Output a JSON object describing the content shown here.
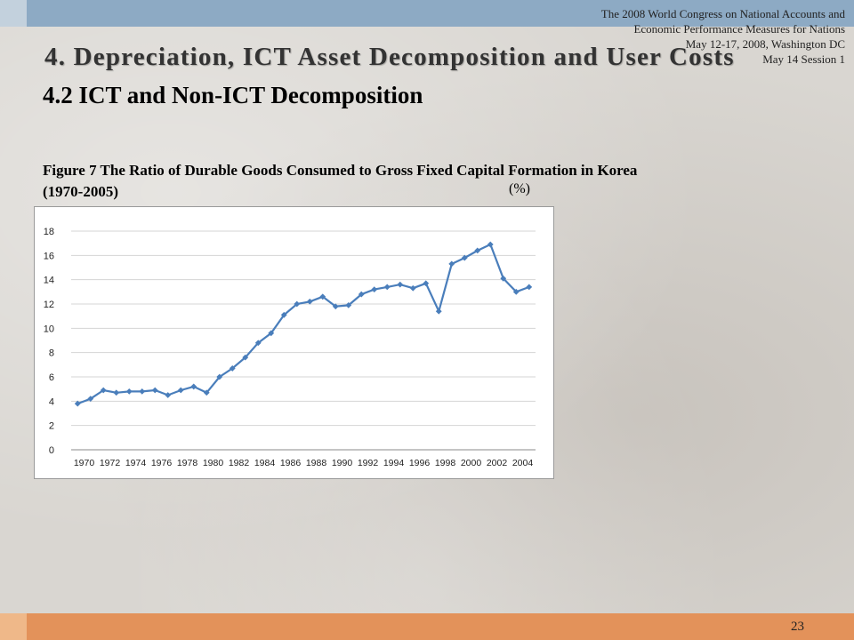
{
  "header": {
    "conference_note_lines": [
      "The 2008 World Congress on National Accounts and",
      "Economic Performance Measures for Nations",
      "May 12-17, 2008, Washington DC",
      "May 14 Session 1"
    ]
  },
  "slide": {
    "title": "4. Depreciation, ICT Asset Decomposition and User Costs",
    "subtitle": "4.2 ICT and Non-ICT Decomposition",
    "figure_caption": "Figure 7 The Ratio of Durable Goods Consumed to Gross Fixed Capital Formation in Korea (1970-2005)",
    "unit_label": "(%)",
    "page_number": "23"
  },
  "colors": {
    "series": "#4a7ebb",
    "top_bar": "#8daac4",
    "bottom_bar": "#e3925a"
  },
  "chart_data": {
    "type": "line",
    "title": "",
    "xlabel": "",
    "ylabel": "",
    "ylim": [
      0,
      18
    ],
    "yticks": [
      0,
      2,
      4,
      6,
      8,
      10,
      12,
      14,
      16,
      18
    ],
    "grid": "horizontal",
    "x": [
      1970,
      1971,
      1972,
      1973,
      1974,
      1975,
      1976,
      1977,
      1978,
      1979,
      1980,
      1981,
      1982,
      1983,
      1984,
      1985,
      1986,
      1987,
      1988,
      1989,
      1990,
      1991,
      1992,
      1993,
      1994,
      1995,
      1996,
      1997,
      1998,
      1999,
      2000,
      2001,
      2002,
      2003,
      2004,
      2005
    ],
    "xtick_labels": [
      "1970",
      "1972",
      "1974",
      "1976",
      "1978",
      "1980",
      "1982",
      "1984",
      "1986",
      "1988",
      "1990",
      "1992",
      "1994",
      "1996",
      "1998",
      "2000",
      "2002",
      "2004"
    ],
    "series": [
      {
        "values": [
          3.8,
          4.2,
          4.9,
          4.7,
          4.8,
          4.8,
          4.9,
          4.5,
          4.9,
          5.2,
          4.7,
          6.0,
          6.7,
          7.6,
          8.8,
          9.6,
          11.1,
          12.0,
          12.2,
          12.6,
          11.8,
          11.9,
          12.8,
          13.2,
          13.4,
          13.6,
          13.3,
          13.7,
          11.4,
          15.3,
          15.8,
          16.4,
          16.9,
          14.1,
          13.0,
          13.4
        ]
      }
    ]
  }
}
